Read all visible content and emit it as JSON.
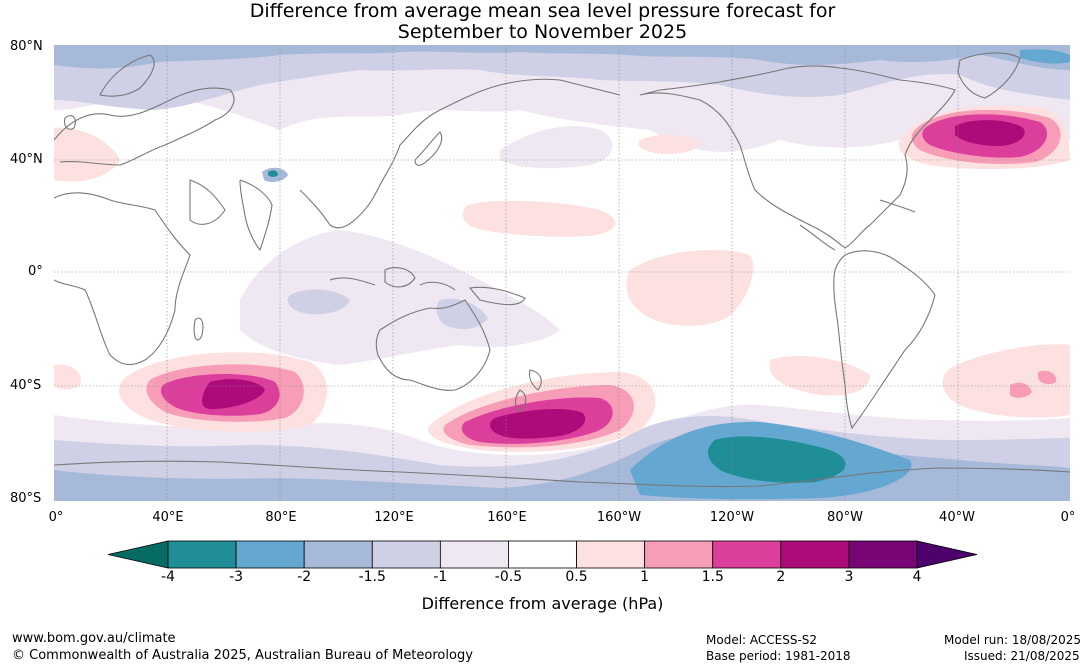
{
  "title_line1": "Difference from average mean sea level pressure forecast for",
  "title_line2": "September to November 2025",
  "lat_labels": [
    "80°N",
    "40°N",
    "0°",
    "40°S",
    "80°S"
  ],
  "lon_labels": [
    "0°",
    "40°E",
    "80°E",
    "120°E",
    "160°E",
    "160°W",
    "120°W",
    "80°W",
    "40°W",
    "0°"
  ],
  "colorbar": {
    "title": "Difference from average (hPa)",
    "ticks": [
      "-4",
      "-3",
      "-2",
      "-1.5",
      "-1",
      "-0.5",
      "0.5",
      "1",
      "1.5",
      "2",
      "3",
      "4"
    ],
    "colors": {
      "below_min": "#066b63",
      "bins": [
        "#1f8e96",
        "#64a8d2",
        "#a7b9d9",
        "#cfd0e6",
        "#efe8f3",
        "#ffffff",
        "#fde0e0",
        "#f79db8",
        "#dc3e9c",
        "#ad0b79",
        "#780576"
      ],
      "above_max": "#4d006b"
    }
  },
  "footer": {
    "url": "www.bom.gov.au/climate",
    "copyright": "© Commonwealth of Australia 2025, Australian Bureau of Meteorology",
    "model": "Model: ACCESS-S2",
    "base_period": "Base period: 1981-2018",
    "model_run": "Model run: 18/08/2025",
    "issued": "Issued: 21/08/2025"
  },
  "colors": {
    "coastline": "#777777",
    "gridline": "#888888",
    "text": "#000000"
  },
  "anomaly_regions": [
    {
      "name": "Arctic and high northern latitudes",
      "level": -1
    },
    {
      "name": "North Atlantic",
      "level": 2
    },
    {
      "name": "Southern Indian Ocean",
      "level": 2
    },
    {
      "name": "Southwest Pacific south of New Zealand",
      "level": 2
    },
    {
      "name": "Southern Ocean south of Pacific",
      "level": -3
    },
    {
      "name": "Antarctic margin",
      "level": -1.5
    }
  ]
}
